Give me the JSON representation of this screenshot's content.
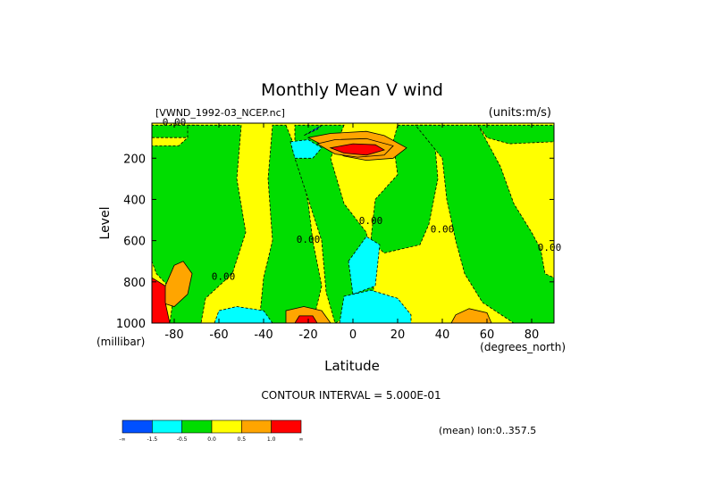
{
  "chart_data": {
    "type": "heatmap",
    "title": "Monthly Mean V wind",
    "dataset_label": "[VWND_1992-03_NCEP.nc]",
    "units_label": "(units:m/s)",
    "xlabel": "Latitude",
    "x_units": "(degrees_north)",
    "ylabel": "Level",
    "y_units": "(millibar)",
    "xlim": [
      -90,
      90
    ],
    "ylim": [
      1000,
      30
    ],
    "y_inverted": true,
    "x_ticks": [
      -80,
      -60,
      -40,
      -20,
      0,
      20,
      40,
      60,
      80
    ],
    "y_ticks": [
      200,
      400,
      600,
      800,
      1000
    ],
    "contour_interval_text": "CONTOUR INTERVAL = 5.000E-01",
    "mean_text": "(mean) lon:0..357.5",
    "contour_labels": [
      {
        "text": "0.00",
        "x": -80,
        "y": 40
      },
      {
        "text": "0.00",
        "x": 8,
        "y": 520
      },
      {
        "text": "0.00",
        "x": 40,
        "y": 560
      },
      {
        "text": "0.00",
        "x": -20,
        "y": 610
      },
      {
        "text": "0.00",
        "x": -58,
        "y": 790
      },
      {
        "text": "0.00",
        "x": 88,
        "y": 650
      }
    ],
    "colorbar": {
      "colors": [
        "#0050ff",
        "#00ffff",
        "#00dd00",
        "#ffff00",
        "#ffa500",
        "#ff0000"
      ],
      "labels": [
        "-∞",
        "-1.5",
        "-0.5",
        "0.0",
        "0.5",
        "1.0",
        "∞"
      ]
    },
    "regions": [
      {
        "level": "neg",
        "pts": [
          [
            -90,
            100
          ],
          [
            -74,
            100
          ],
          [
            -70,
            40
          ],
          [
            -90,
            40
          ]
        ]
      },
      {
        "level": "neg",
        "pts": [
          [
            -74,
            40
          ],
          [
            -50,
            40
          ],
          [
            -52,
            300
          ],
          [
            -48,
            560
          ],
          [
            -54,
            760
          ],
          [
            -66,
            880
          ],
          [
            -68,
            1000
          ],
          [
            -82,
            1000
          ],
          [
            -80,
            850
          ],
          [
            -88,
            760
          ],
          [
            -90,
            700
          ],
          [
            -90,
            140
          ],
          [
            -78,
            140
          ],
          [
            -74,
            100
          ]
        ]
      },
      {
        "level": "neg",
        "pts": [
          [
            -30,
            40
          ],
          [
            -24,
            200
          ],
          [
            -20,
            420
          ],
          [
            -18,
            600
          ],
          [
            -14,
            820
          ],
          [
            -18,
            1000
          ],
          [
            -42,
            1000
          ],
          [
            -40,
            780
          ],
          [
            -36,
            600
          ],
          [
            -38,
            300
          ],
          [
            -36,
            40
          ]
        ]
      },
      {
        "level": "neg",
        "pts": [
          [
            -4,
            40
          ],
          [
            -10,
            200
          ],
          [
            -4,
            420
          ],
          [
            6,
            560
          ],
          [
            10,
            900
          ],
          [
            -8,
            1000
          ],
          [
            -12,
            850
          ],
          [
            -14,
            600
          ],
          [
            -20,
            400
          ],
          [
            -26,
            200
          ],
          [
            -26,
            40
          ]
        ]
      },
      {
        "level": "neg",
        "pts": [
          [
            20,
            40
          ],
          [
            36,
            40
          ],
          [
            38,
            300
          ],
          [
            34,
            520
          ],
          [
            30,
            620
          ],
          [
            14,
            660
          ],
          [
            8,
            600
          ],
          [
            10,
            400
          ],
          [
            20,
            280
          ],
          [
            18,
            120
          ]
        ]
      },
      {
        "level": "neg",
        "pts": [
          [
            28,
            40
          ],
          [
            56,
            40
          ],
          [
            66,
            240
          ],
          [
            72,
            420
          ],
          [
            80,
            560
          ],
          [
            84,
            640
          ],
          [
            86,
            760
          ],
          [
            90,
            780
          ],
          [
            90,
            1000
          ],
          [
            72,
            1000
          ],
          [
            58,
            900
          ],
          [
            50,
            760
          ],
          [
            46,
            600
          ],
          [
            42,
            400
          ],
          [
            40,
            200
          ]
        ]
      },
      {
        "level": "neg",
        "pts": [
          [
            56,
            40
          ],
          [
            90,
            40
          ],
          [
            90,
            120
          ],
          [
            70,
            130
          ],
          [
            60,
            100
          ]
        ]
      },
      {
        "level": "vneg",
        "pts": [
          [
            -56,
            1000
          ],
          [
            -58,
            965
          ],
          [
            -52,
            950
          ],
          [
            -44,
            965
          ],
          [
            -40,
            1000
          ]
        ]
      },
      {
        "level": "vneg",
        "pts": [
          [
            -6,
            1000
          ],
          [
            -4,
            940
          ],
          [
            6,
            900
          ],
          [
            16,
            920
          ],
          [
            22,
            980
          ],
          [
            24,
            1000
          ]
        ]
      },
      {
        "level": "vneg",
        "pts": [
          [
            -14,
            40
          ],
          [
            -16,
            60
          ],
          [
            -20,
            80
          ],
          [
            -22,
            90
          ]
        ]
      },
      {
        "level": "cyan",
        "pts": [
          [
            -28,
            120
          ],
          [
            -20,
            110
          ],
          [
            -14,
            150
          ],
          [
            -18,
            200
          ],
          [
            -26,
            200
          ]
        ]
      },
      {
        "level": "cyan",
        "pts": [
          [
            -2,
            700
          ],
          [
            6,
            580
          ],
          [
            12,
            620
          ],
          [
            10,
            820
          ],
          [
            0,
            860
          ]
        ]
      },
      {
        "level": "cyan",
        "pts": [
          [
            -6,
            1000
          ],
          [
            -4,
            870
          ],
          [
            8,
            840
          ],
          [
            20,
            880
          ],
          [
            26,
            960
          ],
          [
            26,
            1000
          ]
        ]
      },
      {
        "level": "cyan",
        "pts": [
          [
            -62,
            1000
          ],
          [
            -60,
            940
          ],
          [
            -52,
            920
          ],
          [
            -40,
            940
          ],
          [
            -36,
            1000
          ]
        ]
      },
      {
        "level": "pos",
        "pts": [
          [
            -20,
            100
          ],
          [
            -10,
            80
          ],
          [
            6,
            70
          ],
          [
            14,
            90
          ],
          [
            24,
            150
          ],
          [
            18,
            200
          ],
          [
            6,
            210
          ],
          [
            -4,
            190
          ]
        ]
      },
      {
        "level": "pos2",
        "pts": [
          [
            -86,
            900
          ],
          [
            -84,
            820
          ],
          [
            -80,
            720
          ],
          [
            -76,
            700
          ],
          [
            -72,
            760
          ],
          [
            -74,
            860
          ],
          [
            -80,
            920
          ]
        ]
      },
      {
        "level": "pos2",
        "pts": [
          [
            -30,
            1000
          ],
          [
            -30,
            940
          ],
          [
            -22,
            920
          ],
          [
            -14,
            940
          ],
          [
            -10,
            1000
          ]
        ]
      },
      {
        "level": "pos2",
        "pts": [
          [
            44,
            1000
          ],
          [
            46,
            960
          ],
          [
            52,
            930
          ],
          [
            60,
            950
          ],
          [
            62,
            1000
          ]
        ]
      },
      {
        "level": "pos2",
        "pts": [
          [
            -16,
            130
          ],
          [
            -8,
            110
          ],
          [
            6,
            105
          ],
          [
            18,
            140
          ],
          [
            14,
            185
          ],
          [
            2,
            195
          ],
          [
            -8,
            180
          ]
        ]
      },
      {
        "level": "pos3",
        "pts": [
          [
            -10,
            150
          ],
          [
            0,
            130
          ],
          [
            10,
            135
          ],
          [
            14,
            160
          ],
          [
            6,
            185
          ],
          [
            -4,
            175
          ]
        ]
      },
      {
        "level": "pos3",
        "pts": [
          [
            -26,
            1000
          ],
          [
            -24,
            965
          ],
          [
            -18,
            965
          ],
          [
            -16,
            1000
          ]
        ]
      },
      {
        "level": "pos3",
        "pts": [
          [
            -90,
            1000
          ],
          [
            -90,
            780
          ],
          [
            -84,
            820
          ],
          [
            -84,
            900
          ],
          [
            -82,
            1000
          ]
        ]
      }
    ]
  }
}
